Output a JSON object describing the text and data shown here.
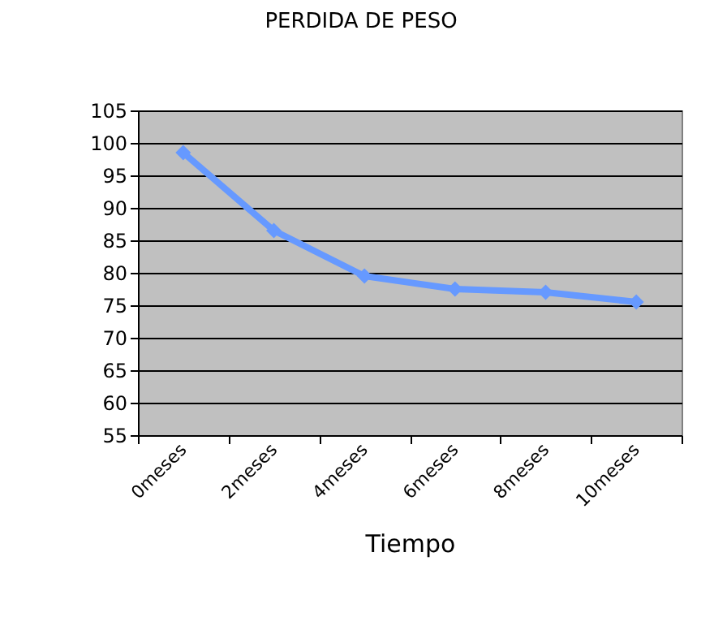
{
  "chart_data": {
    "type": "line",
    "title": "PERDIDA DE PESO",
    "xlabel": "Tiempo",
    "categories": [
      "0meses",
      "2meses",
      "4meses",
      "6meses",
      "8meses",
      "10meses"
    ],
    "series": [
      {
        "color": "#6699ff",
        "values": [
          98.5,
          86.5,
          79.5,
          77.5,
          77,
          75.5
        ]
      }
    ],
    "ylim": [
      55,
      105
    ],
    "yticks": [
      55,
      60,
      65,
      70,
      75,
      80,
      85,
      90,
      95,
      100,
      105
    ],
    "grid": "y",
    "legend": false,
    "marker": "diamond",
    "line_style": "solid"
  }
}
